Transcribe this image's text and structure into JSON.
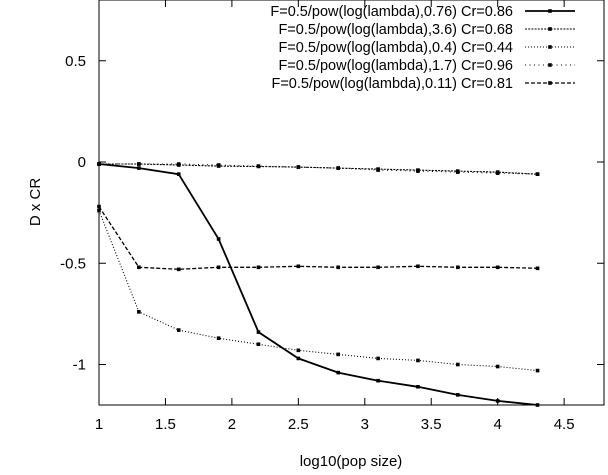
{
  "chart_data": {
    "type": "line",
    "title": "",
    "xlabel": "log10(pop size)",
    "ylabel": "D x CR",
    "xlim": [
      1,
      4.8
    ],
    "ylim": [
      -1.2,
      0.8
    ],
    "x_ticks": [
      1,
      1.5,
      2,
      2.5,
      3,
      3.5,
      4,
      4.5
    ],
    "x_tick_labels": [
      "1",
      "1.5",
      "2",
      "2.5",
      "3",
      "3.5",
      "4",
      "4.5"
    ],
    "y_ticks": [
      0.5,
      0,
      -0.5,
      -1
    ],
    "y_tick_labels": [
      "0.5",
      "0",
      "-0.5",
      "-1"
    ],
    "grid": false,
    "legend_position": "top-right",
    "x": [
      1,
      1.3,
      1.6,
      1.9,
      2.2,
      2.5,
      2.8,
      3.1,
      3.4,
      3.7,
      4.0,
      4.3
    ],
    "series": [
      {
        "name": "F=0.5/pow(log(lambda),0.76) Cr=0.86",
        "dash": "solid",
        "width": 1.8,
        "values": [
          -0.01,
          -0.03,
          -0.06,
          -0.38,
          -0.84,
          -0.97,
          -1.04,
          -1.08,
          -1.11,
          -1.15,
          -1.18,
          -1.2
        ]
      },
      {
        "name": "F=0.5/pow(log(lambda),3.6) Cr=0.68",
        "dash": "dense",
        "width": 1.1,
        "values": [
          -0.01,
          -0.01,
          -0.015,
          -0.02,
          -0.022,
          -0.025,
          -0.03,
          -0.035,
          -0.04,
          -0.045,
          -0.05,
          -0.06
        ]
      },
      {
        "name": "F=0.5/pow(log(lambda),0.4) Cr=0.44",
        "dash": "dotted",
        "width": 1.1,
        "values": [
          -0.24,
          -0.74,
          -0.83,
          -0.87,
          -0.9,
          -0.93,
          -0.95,
          -0.97,
          -0.98,
          -1.0,
          -1.01,
          -1.03
        ]
      },
      {
        "name": "F=0.5/pow(log(lambda),1.7) Cr=0.96",
        "dash": "sparse",
        "width": 1.0,
        "values": [
          -0.01,
          -0.01,
          -0.01,
          -0.015,
          -0.02,
          -0.025,
          -0.03,
          -0.04,
          -0.045,
          -0.05,
          -0.055,
          -0.06
        ]
      },
      {
        "name": "F=0.5/pow(log(lambda),0.11) Cr=0.81",
        "dash": "dashed",
        "width": 1.3,
        "values": [
          -0.22,
          -0.52,
          -0.53,
          -0.52,
          -0.52,
          -0.515,
          -0.52,
          -0.52,
          -0.515,
          -0.52,
          -0.52,
          -0.525
        ]
      }
    ]
  }
}
